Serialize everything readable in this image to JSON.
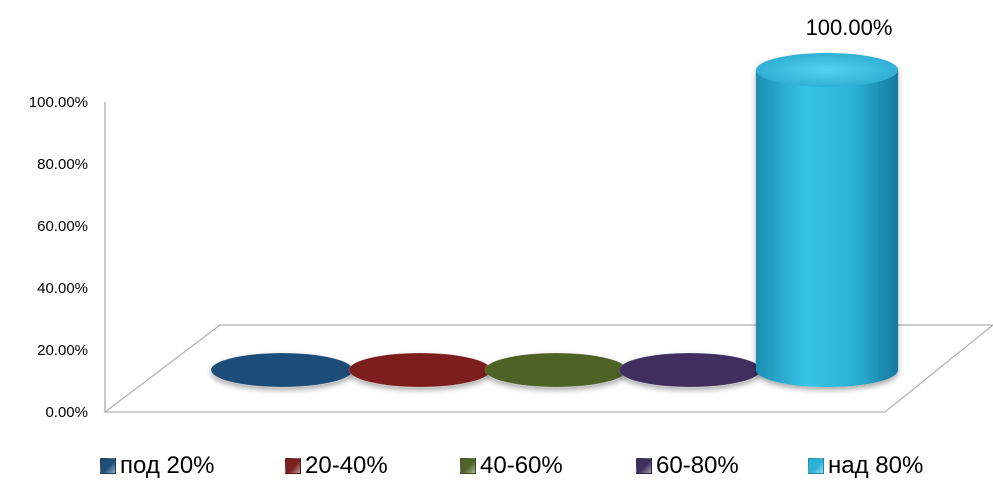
{
  "chart_data": {
    "type": "bar",
    "style": "3d-cylinder",
    "categories": [
      "под 20%",
      "20-40%",
      "40-60%",
      "60-80%",
      "над 80%"
    ],
    "values": [
      0,
      0,
      0,
      0,
      100
    ],
    "data_labels": [
      "",
      "",
      "",
      "",
      "100.00%"
    ],
    "colors": [
      "#1f4e79",
      "#7b1f1f",
      "#4f6228",
      "#3f2f5f",
      "#2ab1d6"
    ],
    "ylim": [
      0,
      100
    ],
    "yticks": [
      0,
      20,
      40,
      60,
      80,
      100
    ],
    "ytick_labels": [
      "0.00%",
      "20.00%",
      "40.00%",
      "60.00%",
      "80.00%",
      "100.00%"
    ],
    "grid": false,
    "legend_position": "bottom"
  }
}
